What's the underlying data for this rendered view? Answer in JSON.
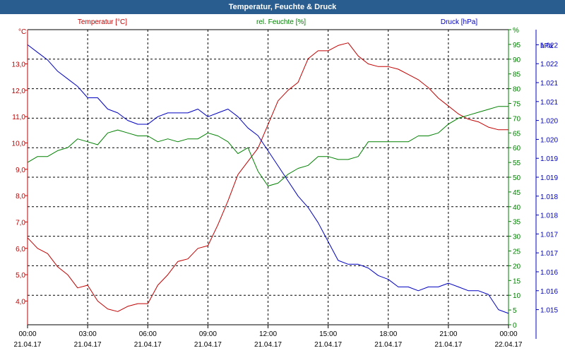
{
  "window": {
    "title": "Temperatur, Feuchte & Druck"
  },
  "chart_data": {
    "type": "line",
    "x_ticks": [
      {
        "time": "00:00",
        "date": "21.04.17"
      },
      {
        "time": "03:00",
        "date": "21.04.17"
      },
      {
        "time": "06:00",
        "date": "21.04.17"
      },
      {
        "time": "09:00",
        "date": "21.04.17"
      },
      {
        "time": "12:00",
        "date": "21.04.17"
      },
      {
        "time": "15:00",
        "date": "21.04.17"
      },
      {
        "time": "18:00",
        "date": "21.04.17"
      },
      {
        "time": "21:00",
        "date": "21.04.17"
      },
      {
        "time": "00:00",
        "date": "22.04.17"
      }
    ],
    "xlim_hours": [
      0,
      24
    ],
    "grid": true,
    "series": [
      {
        "name": "Temperatur [°C]",
        "axis_unit": "°C",
        "color": "#c00000",
        "ylim": [
          3.1,
          14.3
        ],
        "ticks": [
          "4,0",
          "5,0",
          "6,0",
          "7,0",
          "8,0",
          "9,0",
          "10,0",
          "11,0",
          "12,0",
          "13,0"
        ],
        "tick_values": [
          4,
          5,
          6,
          7,
          8,
          9,
          10,
          11,
          12,
          13
        ],
        "x": [
          0,
          0.5,
          1,
          1.5,
          2,
          2.5,
          3,
          3.5,
          4,
          4.5,
          5,
          5.5,
          6,
          6.5,
          7,
          7.5,
          8,
          8.5,
          9,
          9.5,
          10,
          10.5,
          11,
          11.5,
          12,
          12.5,
          13,
          13.5,
          14,
          14.5,
          15,
          15.5,
          16,
          16.5,
          17,
          17.5,
          18,
          18.5,
          19,
          19.5,
          20,
          20.5,
          21,
          21.5,
          22,
          22.5,
          23,
          23.5,
          24
        ],
        "values": [
          6.4,
          6.0,
          5.8,
          5.3,
          5.0,
          4.5,
          4.6,
          4.0,
          3.7,
          3.6,
          3.8,
          3.9,
          3.9,
          4.6,
          5.0,
          5.5,
          5.6,
          6.0,
          6.1,
          6.9,
          7.8,
          8.8,
          9.3,
          9.8,
          10.7,
          11.6,
          12.0,
          12.3,
          13.2,
          13.5,
          13.5,
          13.7,
          13.8,
          13.3,
          13.0,
          12.9,
          12.9,
          12.8,
          12.6,
          12.4,
          12.1,
          11.7,
          11.4,
          11.1,
          10.9,
          10.8,
          10.6,
          10.5,
          10.5
        ]
      },
      {
        "name": "rel. Feuchte [%]",
        "axis_unit": "%",
        "color": "#008000",
        "ylim": [
          0,
          100
        ],
        "ticks": [
          "0",
          "5",
          "10",
          "15",
          "20",
          "25",
          "30",
          "35",
          "40",
          "45",
          "50",
          "55",
          "60",
          "65",
          "70",
          "75",
          "80",
          "85",
          "90",
          "95",
          "%"
        ],
        "tick_values": [
          0,
          5,
          10,
          15,
          20,
          25,
          30,
          35,
          40,
          45,
          50,
          55,
          60,
          65,
          70,
          75,
          80,
          85,
          90,
          95,
          100
        ],
        "x": [
          0,
          0.5,
          1,
          1.5,
          2,
          2.5,
          3,
          3.5,
          4,
          4.5,
          5,
          5.5,
          6,
          6.5,
          7,
          7.5,
          8,
          8.5,
          9,
          9.5,
          10,
          10.5,
          11,
          11.5,
          12,
          12.5,
          13,
          13.5,
          14,
          14.5,
          15,
          15.5,
          16,
          16.5,
          17,
          17.5,
          18,
          18.5,
          19,
          19.5,
          20,
          20.5,
          21,
          21.5,
          22,
          22.5,
          23,
          23.5,
          24
        ],
        "values": [
          55,
          57,
          57,
          59,
          60,
          63,
          62,
          61,
          65,
          66,
          65,
          64,
          64,
          62,
          63,
          62,
          63,
          63,
          65,
          64,
          62,
          58,
          60,
          52,
          47,
          48,
          51,
          53,
          54,
          57,
          57,
          56,
          56,
          57,
          62,
          62,
          62,
          62,
          62,
          64,
          64,
          65,
          68,
          70,
          71,
          72,
          73,
          74,
          74
        ]
      },
      {
        "name": "Druck [hPa]",
        "axis_unit": "hPa",
        "color": "#0000c0",
        "ylim": [
          1014.6,
          1022.4
        ],
        "ticks": [
          "1.015",
          "1.016",
          "1.016",
          "1.017",
          "1.017",
          "1.018",
          "1.018",
          "1.019",
          "1.019",
          "1.020",
          "1.020",
          "1.021",
          "1.021",
          "1.022",
          "1.022"
        ],
        "tick_values": [
          1015,
          1015.5,
          1016,
          1016.5,
          1017,
          1017.5,
          1018,
          1018.5,
          1019,
          1019.5,
          1020,
          1020.5,
          1021,
          1021.5,
          1022
        ],
        "x": [
          0,
          0.5,
          1,
          1.5,
          2,
          2.5,
          3,
          3.5,
          4,
          4.5,
          5,
          5.5,
          6,
          6.5,
          7,
          7.5,
          8,
          8.5,
          9,
          9.5,
          10,
          10.5,
          11,
          11.5,
          12,
          12.5,
          13,
          13.5,
          14,
          14.5,
          15,
          15.5,
          16,
          16.5,
          17,
          17.5,
          18,
          18.5,
          19,
          19.5,
          20,
          20.5,
          21,
          21.5,
          22,
          22.5,
          23,
          23.5,
          24
        ],
        "values": [
          1022.0,
          1021.8,
          1021.6,
          1021.3,
          1021.1,
          1020.9,
          1020.6,
          1020.6,
          1020.3,
          1020.2,
          1020.0,
          1019.9,
          1019.9,
          1020.1,
          1020.2,
          1020.2,
          1020.2,
          1020.3,
          1020.1,
          1020.2,
          1020.3,
          1020.1,
          1019.8,
          1019.6,
          1019.2,
          1018.8,
          1018.4,
          1018.0,
          1017.7,
          1017.3,
          1016.8,
          1016.3,
          1016.2,
          1016.2,
          1016.1,
          1015.9,
          1015.8,
          1015.6,
          1015.6,
          1015.5,
          1015.6,
          1015.6,
          1015.7,
          1015.6,
          1015.5,
          1015.5,
          1015.4,
          1015.0,
          1014.9
        ]
      }
    ]
  }
}
